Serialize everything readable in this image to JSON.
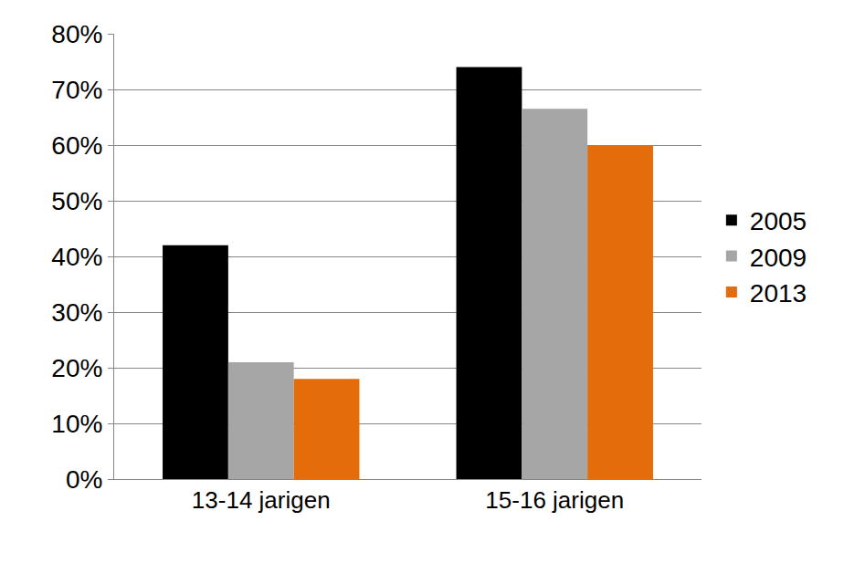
{
  "chart_data": {
    "type": "bar",
    "categories": [
      "13-14 jarigen",
      "15-16 jarigen"
    ],
    "series": [
      {
        "name": "2005",
        "color": "#000000",
        "values": [
          42,
          74
        ]
      },
      {
        "name": "2009",
        "color": "#a6a6a6",
        "values": [
          21,
          66.5
        ]
      },
      {
        "name": "2013",
        "color": "#e46c0a",
        "values": [
          18,
          60
        ]
      }
    ],
    "ylim": [
      0,
      80
    ],
    "yticks": [
      {
        "value": 0,
        "label": "0%"
      },
      {
        "value": 10,
        "label": "10%"
      },
      {
        "value": 20,
        "label": "20%"
      },
      {
        "value": 30,
        "label": "30%"
      },
      {
        "value": 40,
        "label": "40%"
      },
      {
        "value": 50,
        "label": "50%"
      },
      {
        "value": 60,
        "label": "60%"
      },
      {
        "value": 70,
        "label": "70%"
      },
      {
        "value": 80,
        "label": "80%"
      }
    ],
    "grid": true,
    "legend": "right"
  }
}
